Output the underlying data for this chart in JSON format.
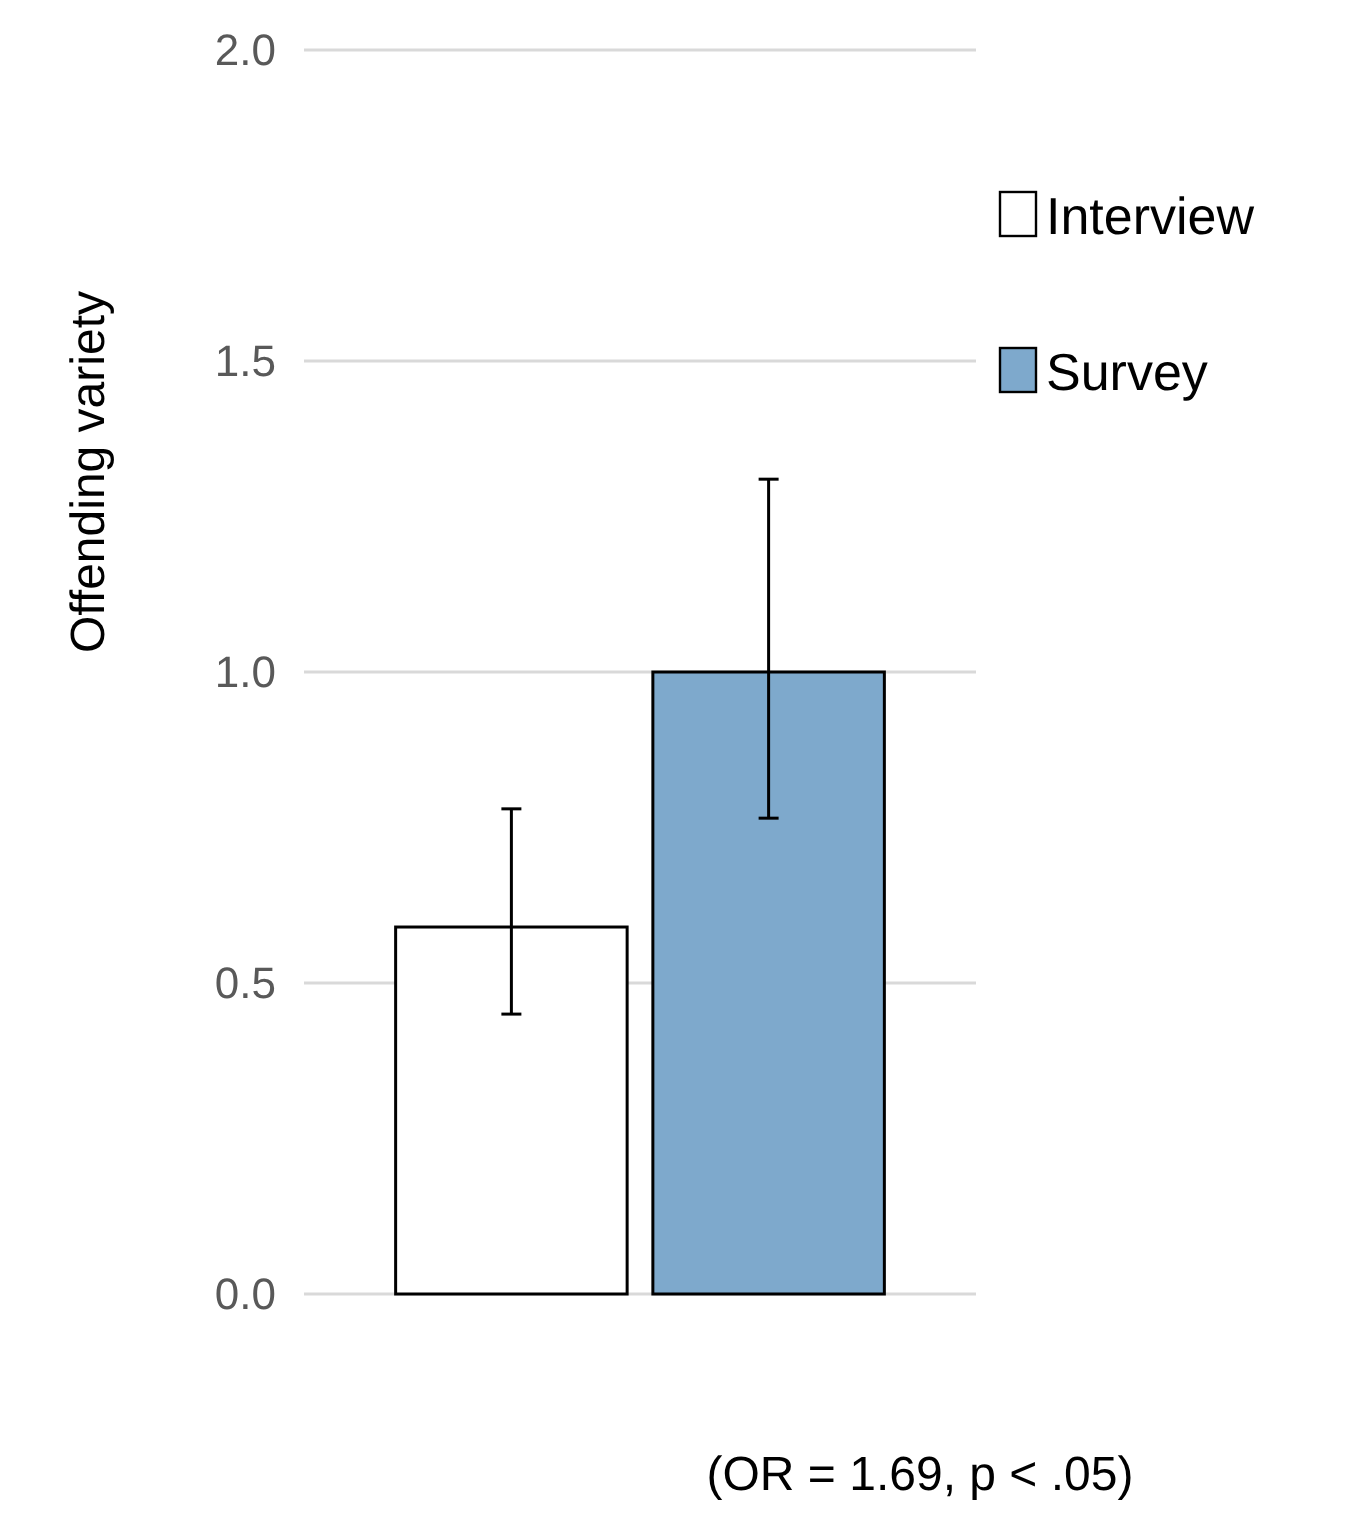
{
  "chart_data": {
    "type": "bar",
    "ylabel": "Offending variety",
    "categories": [
      null
    ],
    "series": [
      {
        "name": "Interview",
        "color": "#ffffff",
        "values": [
          0.59
        ],
        "errors": [
          [
            0.45,
            0.78
          ]
        ]
      },
      {
        "name": "Survey",
        "color": "#7ea9cc",
        "values": [
          1.0
        ],
        "errors": [
          [
            0.765,
            1.31
          ]
        ]
      }
    ],
    "ylim": [
      0,
      2
    ],
    "yticks": [
      {
        "value": 0,
        "label": "0.0"
      },
      {
        "value": 0.5,
        "label": "0.5"
      },
      {
        "value": 1,
        "label": "1.0"
      },
      {
        "value": 1.5,
        "label": "1.5"
      },
      {
        "value": 2,
        "label": "2.0"
      }
    ],
    "grid": "y",
    "legend": "right",
    "annotations": [
      "(OR = 1.69, p < .05)"
    ]
  }
}
